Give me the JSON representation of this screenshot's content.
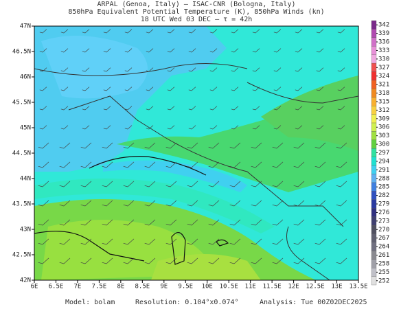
{
  "header": {
    "line1": "ARPAL (Genoa, Italy)  –  ISAC-CNR (Bologna, Italy)",
    "line2": "850hPa Equivalent Potential Temperature (K), 850hPa Winds (kn)",
    "line3": "18 UTC Wed 03 DEC  –  τ = 42h"
  },
  "map": {
    "lon_labels": [
      "6E",
      "6.5E",
      "7E",
      "7.5E",
      "8E",
      "8.5E",
      "9E",
      "9.5E",
      "10E",
      "10.5E",
      "11E",
      "11.5E",
      "12E",
      "12.5E",
      "13E",
      "13.5E"
    ],
    "lat_labels": [
      "47N",
      "46.5N",
      "46N",
      "45.5N",
      "45N",
      "44.5N",
      "44N",
      "43.5N",
      "43N",
      "42.5N",
      "42N"
    ]
  },
  "colorbar": {
    "levels": [
      342,
      339,
      336,
      333,
      330,
      327,
      324,
      321,
      318,
      315,
      312,
      309,
      306,
      303,
      300,
      297,
      294,
      291,
      288,
      285,
      282,
      279,
      276,
      273,
      270,
      267,
      264,
      261,
      258,
      255,
      252
    ],
    "colors": [
      "#7a2a8a",
      "#b04ab0",
      "#d070c8",
      "#e890d8",
      "#f0a8e0",
      "#f05050",
      "#f03030",
      "#f06020",
      "#f08a20",
      "#f8b030",
      "#f8d040",
      "#f0f050",
      "#d0f050",
      "#a0e040",
      "#60d040",
      "#30e0a0",
      "#20e0d0",
      "#40d0f0",
      "#60b0f0",
      "#4080e0",
      "#3050c0",
      "#2a3aa0",
      "#303080",
      "#404070",
      "#505060",
      "#606070",
      "#707080",
      "#8a8a90",
      "#a0a0a8",
      "#c0c0c8",
      "#e0e0e0"
    ]
  },
  "footer": {
    "model": "Model: bolam",
    "resolution": "Resolution: 0.104°x0.074°",
    "analysis": "Analysis: Tue 00Z02DEC2025"
  }
}
